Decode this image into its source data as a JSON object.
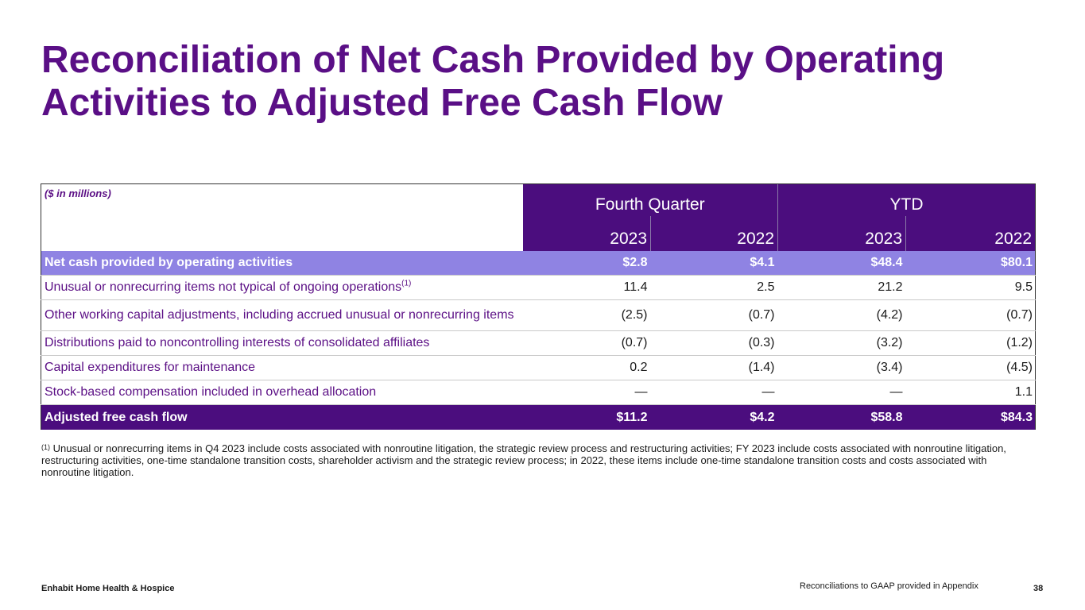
{
  "title": {
    "line1": "Reconciliation of Net Cash Provided by Operating",
    "line2": "Activities to Adjusted Free Cash Flow"
  },
  "table": {
    "units_label": "($ in millions)",
    "groups": [
      "Fourth Quarter",
      "YTD"
    ],
    "years": [
      "2023",
      "2022",
      "2023",
      "2022"
    ],
    "rows": [
      {
        "label": "Net cash provided by operating activities",
        "sup": "",
        "values": [
          "$2.8",
          "$4.1",
          "$48.4",
          "$80.1"
        ]
      },
      {
        "label": "Unusual or nonrecurring items not typical of ongoing operations",
        "sup": "(1)",
        "values": [
          "11.4",
          "2.5",
          "21.2",
          "9.5"
        ]
      },
      {
        "label": "Other working capital adjustments, including accrued unusual or nonrecurring items",
        "sup": "",
        "values": [
          "(2.5)",
          "(0.7)",
          "(4.2)",
          "(0.7)"
        ]
      },
      {
        "label": "Distributions paid to noncontrolling interests of consolidated affiliates",
        "sup": "",
        "values": [
          "(0.7)",
          "(0.3)",
          "(3.2)",
          "(1.2)"
        ]
      },
      {
        "label": "Capital expenditures for maintenance",
        "sup": "",
        "values": [
          "0.2",
          "(1.4)",
          "(3.4)",
          "(4.5)"
        ]
      },
      {
        "label": "Stock-based compensation included in overhead allocation",
        "sup": "",
        "values": [
          "—",
          "—",
          "—",
          "1.1"
        ]
      },
      {
        "label": "Adjusted free cash flow",
        "sup": "",
        "values": [
          "$11.2",
          "$4.2",
          "$58.8",
          "$84.3"
        ]
      }
    ]
  },
  "footnote": {
    "mark": "(1)",
    "text": "Unusual or nonrecurring items in Q4 2023 include costs associated with nonroutine litigation, the strategic review process and restructuring activities; FY 2023 include costs associated with nonroutine litigation, restructuring activities, one-time standalone transition costs, shareholder activism and the strategic review process; in 2022, these items include one-time standalone transition costs and costs associated with nonroutine litigation."
  },
  "footer": {
    "company": "Enhabit Home Health & Hospice",
    "note": "Reconciliations to GAAP provided in Appendix",
    "page": "38"
  },
  "colors": {
    "title_purple": "#5a0f86",
    "header_purple": "#4b0d7e",
    "highlight_lavender": "#8f83e3"
  }
}
